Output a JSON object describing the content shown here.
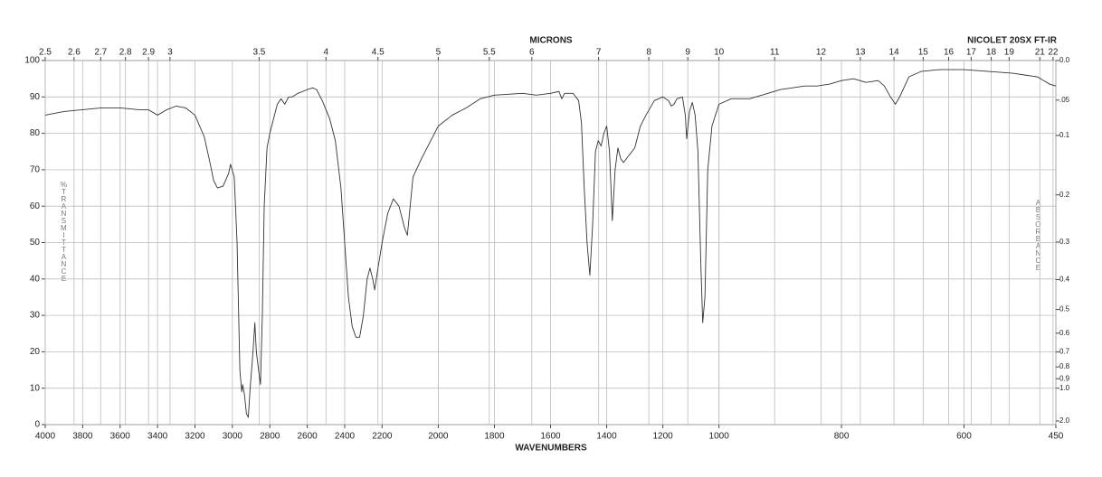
{
  "chart_data": {
    "type": "line",
    "title": "NICOLET 20SX FT-IR",
    "xlabel": "WAVENUMBERS",
    "ylabel": "%TRANSMITTANCE",
    "top_xlabel": "MICRONS",
    "y2label": "ABSORBANCE",
    "color": "#333333",
    "grid": true,
    "xlim": [
      4000,
      450
    ],
    "x_scale_breaks": [
      2200,
      1000
    ],
    "ylim": [
      0,
      100
    ],
    "yticks": [
      0,
      10,
      20,
      30,
      40,
      50,
      60,
      70,
      80,
      90,
      100
    ],
    "xticks": [
      4000,
      3800,
      3600,
      3400,
      3200,
      3000,
      2800,
      2600,
      2400,
      2200,
      2000,
      1800,
      1600,
      1400,
      1200,
      1000,
      800,
      600,
      450
    ],
    "top_xticks": [
      2.5,
      2.6,
      2.7,
      2.8,
      2.9,
      3,
      3.5,
      4,
      4.5,
      5,
      5.5,
      6,
      7,
      8,
      9,
      10,
      11,
      12,
      13,
      14,
      15,
      16,
      17,
      18,
      19,
      21,
      22
    ],
    "y2ticks": [
      {
        "value": 0,
        "label": "0.0"
      },
      {
        "value": 0.05,
        "label": ".05"
      },
      0.1,
      0.2,
      0.3,
      0.4,
      0.5,
      0.6,
      0.7,
      0.8,
      0.9,
      {
        "value": 1,
        "label": "1.0"
      },
      {
        "value": 2,
        "label": "2.0"
      }
    ],
    "x": [
      4000,
      3900,
      3800,
      3700,
      3600,
      3500,
      3450,
      3400,
      3350,
      3300,
      3250,
      3200,
      3150,
      3120,
      3100,
      3080,
      3050,
      3020,
      3010,
      2990,
      2975,
      2960,
      2950,
      2945,
      2935,
      2925,
      2915,
      2905,
      2890,
      2880,
      2872,
      2860,
      2850,
      2840,
      2830,
      2815,
      2800,
      2780,
      2760,
      2740,
      2720,
      2700,
      2680,
      2650,
      2600,
      2570,
      2550,
      2520,
      2480,
      2450,
      2420,
      2400,
      2380,
      2360,
      2340,
      2320,
      2300,
      2280,
      2265,
      2250,
      2240,
      2225,
      2200,
      2180,
      2160,
      2140,
      2120,
      2110,
      2090,
      2060,
      2000,
      1950,
      1900,
      1850,
      1800,
      1700,
      1650,
      1600,
      1570,
      1560,
      1550,
      1520,
      1500,
      1490,
      1480,
      1470,
      1460,
      1450,
      1440,
      1430,
      1420,
      1410,
      1400,
      1390,
      1380,
      1370,
      1360,
      1350,
      1340,
      1320,
      1300,
      1280,
      1260,
      1230,
      1200,
      1180,
      1170,
      1160,
      1150,
      1130,
      1120,
      1115,
      1105,
      1095,
      1085,
      1075,
      1065,
      1058,
      1050,
      1040,
      1025,
      1000,
      980,
      950,
      920,
      900,
      880,
      860,
      840,
      820,
      800,
      780,
      760,
      740,
      730,
      720,
      712,
      705,
      690,
      670,
      640,
      600,
      560,
      520,
      500,
      480,
      470,
      460,
      450
    ],
    "values": [
      85,
      86,
      86.5,
      87,
      87,
      86.5,
      86.5,
      85,
      86.5,
      87.5,
      87,
      85,
      79,
      72,
      67,
      65,
      65.5,
      69,
      71.5,
      68,
      50,
      15,
      9,
      11,
      8,
      3,
      2,
      10,
      20,
      28,
      20,
      15,
      11,
      30,
      60,
      76,
      80,
      84,
      88,
      89.5,
      88,
      90,
      90,
      91,
      92,
      92.5,
      92,
      89,
      84,
      78,
      65,
      50,
      35,
      27,
      24,
      24,
      30,
      40,
      43,
      40,
      37,
      42,
      50,
      58,
      62,
      60,
      54,
      52,
      68,
      73,
      82,
      85,
      87,
      89.5,
      90.5,
      91,
      90.5,
      91,
      91.5,
      89.5,
      91,
      91,
      89,
      83,
      65,
      50,
      41,
      55,
      75,
      78,
      76.5,
      80,
      82,
      75,
      56,
      70,
      76,
      73,
      72,
      74,
      76,
      82,
      85,
      89,
      90,
      89,
      87.5,
      88,
      89.5,
      90,
      85,
      78.5,
      86,
      88.5,
      85,
      75,
      45,
      28,
      35,
      70,
      82,
      88,
      89.5,
      89.5,
      91,
      92,
      92.5,
      93,
      93,
      93.5,
      94.5,
      95,
      94,
      94.5,
      93,
      90,
      88,
      90,
      95.5,
      97,
      97.5,
      97.5,
      97,
      96.5,
      96,
      95.5,
      94.5,
      93.5,
      93
    ]
  }
}
